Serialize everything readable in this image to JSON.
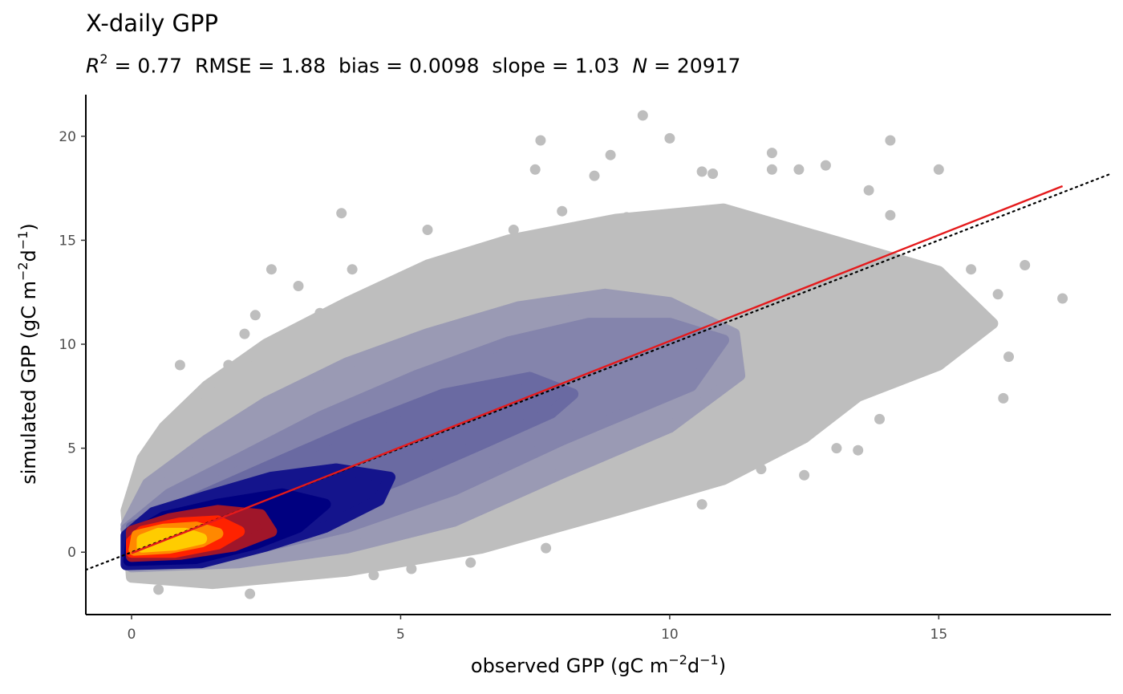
{
  "chart_data": {
    "type": "scatter",
    "title": "X-daily GPP",
    "subtitle": {
      "r2_symbol": "R",
      "r2_exp": "2",
      "r2_value": "= 0.77",
      "rmse": "RMSE = 1.88",
      "bias": "bias = 0.0098",
      "slope": "slope = 1.03",
      "n_symbol": "N",
      "n_value": "= 20917"
    },
    "xlabel": {
      "text": "observed GPP (gC m",
      "exp1": "−2",
      "mid": "d",
      "exp2": "−1",
      "end": ")"
    },
    "ylabel": {
      "text": "simulated GPP (gC m",
      "exp1": "−2",
      "mid": "d",
      "exp2": "−1",
      "end": ")"
    },
    "xlim": [
      -0.85,
      18.2
    ],
    "ylim": [
      -3,
      22
    ],
    "x_ticks": [
      0,
      5,
      10,
      15
    ],
    "x_tick_labels": [
      "0",
      "5",
      "10",
      "15"
    ],
    "y_ticks": [
      0,
      5,
      10,
      15,
      20
    ],
    "y_tick_labels": [
      "0",
      "5",
      "10",
      "15",
      "20"
    ],
    "grid": false,
    "fit_line": {
      "x": [
        0,
        17.3
      ],
      "y": [
        -0.05,
        17.6
      ],
      "color": "#e41a1c"
    },
    "identity_line": {
      "style": "dotted",
      "color": "#000000"
    },
    "density_layers": [
      {
        "level": 1,
        "color": "#bebebe",
        "points": [
          [
            0,
            -1.2
          ],
          [
            1.5,
            -1.5
          ],
          [
            4,
            -0.9
          ],
          [
            6.5,
            0.2
          ],
          [
            9,
            2
          ],
          [
            11,
            3.5
          ],
          [
            12.5,
            5.5
          ],
          [
            13.5,
            7.5
          ],
          [
            15,
            9
          ],
          [
            16,
            11
          ],
          [
            15,
            13.5
          ],
          [
            13,
            15
          ],
          [
            11,
            16.5
          ],
          [
            9,
            16
          ],
          [
            7,
            15
          ],
          [
            5.5,
            13.8
          ],
          [
            4,
            12
          ],
          [
            2.5,
            10
          ],
          [
            1.4,
            8
          ],
          [
            0.6,
            6
          ],
          [
            0.2,
            4.5
          ],
          [
            -0.1,
            2
          ]
        ]
      },
      {
        "level": 2,
        "color": "#9a9ab4",
        "points": [
          [
            0,
            -0.7
          ],
          [
            2,
            -0.5
          ],
          [
            4,
            0.2
          ],
          [
            6,
            1.5
          ],
          [
            8,
            3.8
          ],
          [
            10,
            6
          ],
          [
            11.3,
            8.5
          ],
          [
            11.2,
            10.5
          ],
          [
            10,
            12
          ],
          [
            8.8,
            12.4
          ],
          [
            7.2,
            11.8
          ],
          [
            5.5,
            10.5
          ],
          [
            4,
            9.1
          ],
          [
            2.5,
            7.2
          ],
          [
            1.4,
            5.4
          ],
          [
            0.3,
            3.3
          ],
          [
            -0.1,
            1.3
          ]
        ]
      },
      {
        "level": 3,
        "color": "#8484ac",
        "points": [
          [
            0,
            -0.4
          ],
          [
            2,
            0
          ],
          [
            4,
            1.2
          ],
          [
            6,
            3
          ],
          [
            8,
            5.4
          ],
          [
            10.4,
            8
          ],
          [
            11,
            10.2
          ],
          [
            10,
            11
          ],
          [
            8.5,
            11
          ],
          [
            7,
            10.1
          ],
          [
            5.3,
            8.5
          ],
          [
            3.5,
            6.5
          ],
          [
            2,
            4.5
          ],
          [
            0.7,
            2.8
          ],
          [
            -0.1,
            1.1
          ]
        ]
      },
      {
        "level": 4,
        "color": "#6a6aa2",
        "points": [
          [
            0,
            -0.2
          ],
          [
            1.8,
            0.5
          ],
          [
            3.3,
            1.8
          ],
          [
            5,
            3.5
          ],
          [
            6.5,
            5.2
          ],
          [
            7.8,
            6.7
          ],
          [
            8.2,
            7.6
          ],
          [
            7.4,
            8.4
          ],
          [
            5.8,
            7.6
          ],
          [
            4.2,
            6
          ],
          [
            2.6,
            4.2
          ],
          [
            1.2,
            2.6
          ],
          [
            0,
            1.2
          ]
        ]
      },
      {
        "level": 5,
        "color": "#14148c",
        "points": [
          [
            -0.1,
            -0.6
          ],
          [
            1.3,
            -0.5
          ],
          [
            2.5,
            0.3
          ],
          [
            3.6,
            1.2
          ],
          [
            4.6,
            2.5
          ],
          [
            4.8,
            3.6
          ],
          [
            3.8,
            4
          ],
          [
            2.6,
            3.6
          ],
          [
            1.4,
            2.7
          ],
          [
            0.4,
            1.9
          ],
          [
            -0.1,
            0.8
          ]
        ]
      },
      {
        "level": 6,
        "color": "#000080",
        "points": [
          [
            -0.05,
            -0.4
          ],
          [
            1.2,
            -0.3
          ],
          [
            2.3,
            0.4
          ],
          [
            3.1,
            1.2
          ],
          [
            3.6,
            2.3
          ],
          [
            2.8,
            2.8
          ],
          [
            1.6,
            2.3
          ],
          [
            0.6,
            1.7
          ],
          [
            0,
            0.8
          ]
        ]
      },
      {
        "level": 7,
        "color": "#a0162a",
        "points": [
          [
            0,
            -0.2
          ],
          [
            0.9,
            -0.1
          ],
          [
            1.9,
            0.3
          ],
          [
            2.6,
            1
          ],
          [
            2.4,
            1.8
          ],
          [
            1.6,
            2
          ],
          [
            0.7,
            1.6
          ],
          [
            0,
            1
          ]
        ]
      },
      {
        "level": 8,
        "color": "#ff2200",
        "points": [
          [
            0,
            0
          ],
          [
            0.8,
            0
          ],
          [
            1.6,
            0.4
          ],
          [
            2,
            1
          ],
          [
            1.6,
            1.5
          ],
          [
            0.9,
            1.4
          ],
          [
            0.2,
            1
          ],
          [
            0,
            0.5
          ]
        ]
      },
      {
        "level": 9,
        "color": "#ff8800",
        "points": [
          [
            0.05,
            0.1
          ],
          [
            0.7,
            0.2
          ],
          [
            1.3,
            0.5
          ],
          [
            1.6,
            0.9
          ],
          [
            1.2,
            1.2
          ],
          [
            0.6,
            1.1
          ],
          [
            0.1,
            0.8
          ]
        ]
      },
      {
        "level": 10,
        "color": "#ffcc00",
        "points": [
          [
            0.2,
            0.25
          ],
          [
            0.8,
            0.35
          ],
          [
            1.3,
            0.65
          ],
          [
            1,
            0.9
          ],
          [
            0.5,
            0.9
          ],
          [
            0.2,
            0.6
          ]
        ]
      }
    ],
    "outlier_points": [
      [
        9.5,
        21
      ],
      [
        10,
        19.9
      ],
      [
        7.6,
        19.8
      ],
      [
        8.9,
        19.1
      ],
      [
        11.9,
        19.2
      ],
      [
        14.1,
        19.8
      ],
      [
        15,
        18.4
      ],
      [
        11.9,
        18.4
      ],
      [
        10.6,
        18.3
      ],
      [
        10.8,
        18.2
      ],
      [
        12.4,
        18.4
      ],
      [
        12.9,
        18.6
      ],
      [
        7.5,
        18.4
      ],
      [
        8.6,
        18.1
      ],
      [
        3.9,
        16.3
      ],
      [
        5.5,
        15.5
      ],
      [
        2.6,
        13.6
      ],
      [
        3.1,
        12.8
      ],
      [
        2.3,
        11.4
      ],
      [
        1.8,
        9
      ],
      [
        0.9,
        9
      ],
      [
        16.1,
        12.4
      ],
      [
        16.6,
        13.8
      ],
      [
        17.3,
        12.2
      ],
      [
        16.3,
        9.4
      ],
      [
        16.2,
        7.4
      ],
      [
        15.6,
        13.6
      ],
      [
        14.1,
        16.2
      ],
      [
        14.4,
        13.3
      ],
      [
        13.7,
        17.4
      ],
      [
        13.9,
        6.4
      ],
      [
        13.5,
        4.9
      ],
      [
        13.1,
        5
      ],
      [
        12.5,
        3.7
      ],
      [
        10.6,
        2.3
      ],
      [
        11.7,
        4
      ],
      [
        9.9,
        3.3
      ],
      [
        9,
        3.5
      ],
      [
        8.5,
        1.8
      ],
      [
        7.7,
        0.2
      ],
      [
        6.3,
        -0.5
      ],
      [
        5.2,
        -0.8
      ],
      [
        4.5,
        -1.1
      ],
      [
        2.2,
        -2
      ],
      [
        1.6,
        -1.5
      ],
      [
        0.5,
        -1.8
      ],
      [
        4.1,
        13.6
      ],
      [
        4.7,
        12.8
      ],
      [
        6.2,
        14.2
      ],
      [
        7.1,
        15.5
      ],
      [
        8,
        16.4
      ],
      [
        9.2,
        16.1
      ],
      [
        3.5,
        11.5
      ],
      [
        2.1,
        10.5
      ]
    ]
  }
}
